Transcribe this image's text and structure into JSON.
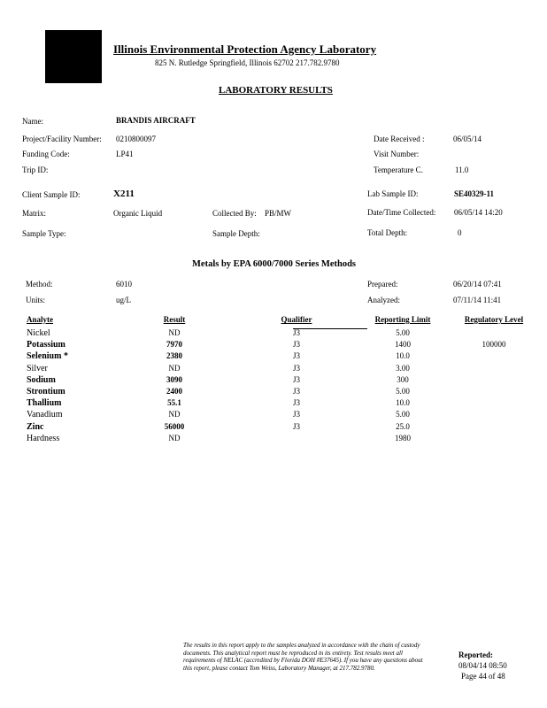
{
  "header": {
    "agency": "Illinois Environmental Protection Agency Laboratory",
    "address": "825 N. Rutledge Springfield, Illinois 62702   217.782.9780",
    "title": "LABORATORY RESULTS"
  },
  "sample": {
    "name_label": "Name:",
    "name": "BRANDIS AIRCRAFT",
    "project_label": "Project/Facility Number:",
    "project": "0210800097",
    "funding_label": "Funding Code:",
    "funding": "LP41",
    "trip_label": "Trip ID:",
    "client_label": "Client Sample ID:",
    "client": "X211",
    "matrix_label": "Matrix:",
    "matrix": "Organic Liquid",
    "collected_by_label": "Collected By:",
    "collected_by": "PB/MW",
    "sample_type_label": "Sample Type:",
    "sample_depth_label": "Sample Depth:",
    "date_received_label": "Date Received :",
    "date_received": "06/05/14",
    "visit_label": "Visit Number:",
    "temp_label": "Temperature C.",
    "temp": "11.0",
    "lab_id_label": "Lab Sample ID:",
    "lab_id": "SE40329-11",
    "collected_label": "Date/Time Collected:",
    "collected": "06/05/14  14:20",
    "total_depth_label": "Total Depth:",
    "total_depth": "0"
  },
  "method": {
    "section_title": "Metals by EPA 6000/7000 Series Methods",
    "method_label": "Method:",
    "method": "6010",
    "units_label": "Units:",
    "units": "ug/L",
    "prepared_label": "Prepared:",
    "prepared": "06/20/14 07:41",
    "analyzed_label": "Analyzed:",
    "analyzed": "07/11/14 11:41"
  },
  "table": {
    "headers": [
      "Analyte",
      "Result",
      "Qualifier",
      "Reporting Limit",
      "Regulatory Level"
    ],
    "rows": [
      [
        "Nickel",
        "ND",
        "J3",
        "5.00",
        ""
      ],
      [
        "Potassium",
        "7970",
        "J3",
        "1400",
        "100000"
      ],
      [
        "Selenium *",
        "2380",
        "J3",
        "10.0",
        ""
      ],
      [
        "Silver",
        "ND",
        "J3",
        "3.00",
        ""
      ],
      [
        "Sodium",
        "3090",
        "J3",
        "300",
        ""
      ],
      [
        "Strontium",
        "2400",
        "J3",
        "5.00",
        ""
      ],
      [
        "Thallium",
        "55.1",
        "J3",
        "10.0",
        ""
      ],
      [
        "Vanadium",
        "ND",
        "J3",
        "5.00",
        ""
      ],
      [
        "Zinc",
        "56000",
        "J3",
        "25.0",
        ""
      ],
      [
        "Hardness",
        "ND",
        "",
        "1980",
        ""
      ]
    ]
  },
  "footer": {
    "disclaimer": "The results in this report apply to the samples analyzed in accordance with the chain of custody documents. This analytical report must be reproduced in its entirety. Test results meet all requirements of NELAC (accredited by Florida DOH #E37645). If you have any questions about this report, please contact Tom Weiss, Laboratory Manager, at 217.782.9780.",
    "reported_label": "Reported:",
    "reported": "08/04/14 08:50",
    "page": "Page 44 of 48"
  }
}
